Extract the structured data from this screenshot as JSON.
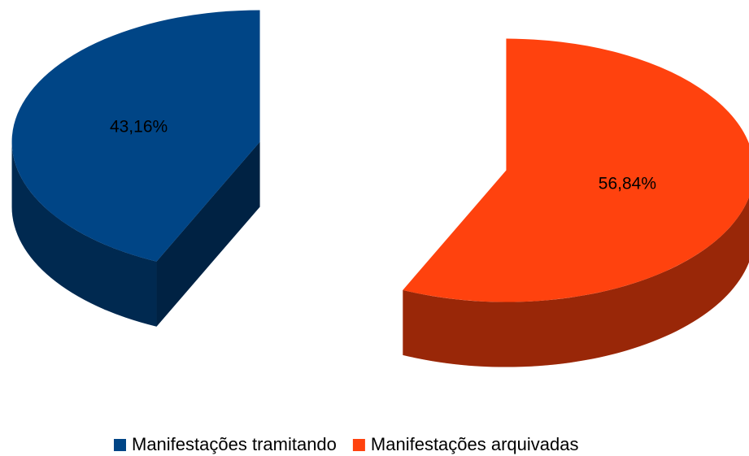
{
  "chart_data": {
    "type": "pie",
    "categories": [
      "Manifestações tramitando",
      "Manifestações arquivadas"
    ],
    "values": [
      43.16,
      56.84
    ],
    "value_labels": [
      "43,16%",
      "56,84%"
    ],
    "colors": [
      "#004586",
      "#ff420e"
    ]
  }
}
